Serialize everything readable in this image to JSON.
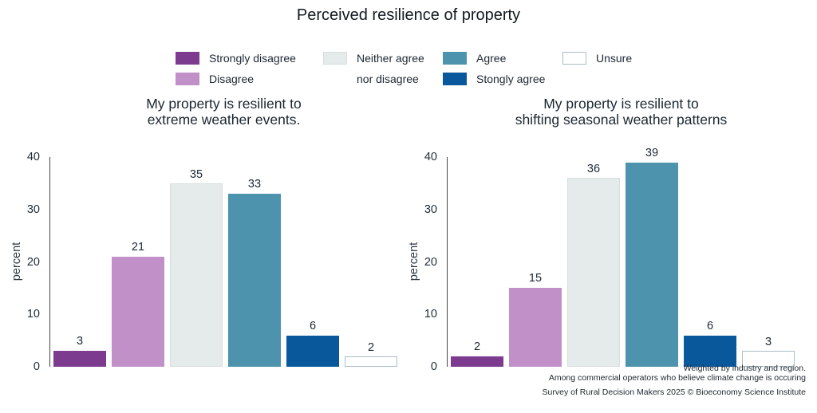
{
  "title": "Perceived resilience of property",
  "palette": {
    "fills": [
      "#7C3B8F",
      "#C190C9",
      "#E5EBEA",
      "#4E93AD",
      "#0A589C",
      "#FFFFFF"
    ],
    "borders": [
      null,
      null,
      "#D4DFDE",
      null,
      null,
      "#A9BDC7"
    ],
    "axis_color": "#454545",
    "text_color": "#1D2733"
  },
  "legend": {
    "columns": [
      {
        "items": [
          {
            "label": "Strongly disagree",
            "color": "#7C3B8F",
            "border": "#7C3B8F"
          },
          {
            "label": "Disagree",
            "color": "#C190C9",
            "border": "#C190C9"
          }
        ]
      },
      {
        "items": [
          {
            "label": "Neither agree",
            "color": "#E5EBEA",
            "border": "#D4DFDE"
          },
          {
            "label": "nor disagree",
            "color": null,
            "border": null
          }
        ]
      },
      {
        "items": [
          {
            "label": "Agree",
            "color": "#4E93AD",
            "border": "#4E93AD"
          },
          {
            "label": "Stongly agree",
            "color": "#0A589C",
            "border": "#0A589C"
          }
        ]
      },
      {
        "items": [
          {
            "label": "Unsure",
            "color": "#FFFFFF",
            "border": "#A9BDC7"
          }
        ]
      }
    ]
  },
  "chart_data": [
    {
      "type": "bar",
      "title": "My property is resilient to extreme weather events.",
      "title_lines": [
        "My property is resilient to",
        "extreme weather events."
      ],
      "ylabel": "percent",
      "ylim": [
        0,
        40
      ],
      "yticks": [
        0,
        10,
        20,
        30,
        40
      ],
      "grid": false,
      "categories": [
        "Strongly disagree",
        "Disagree",
        "Neither agree nor disagree",
        "Agree",
        "Stongly agree",
        "Unsure"
      ],
      "values": [
        3,
        21,
        35,
        33,
        6,
        2
      ]
    },
    {
      "type": "bar",
      "title": "My property is resilient to shifting seasonal weather patterns",
      "title_lines": [
        "My property is resilient to",
        "shifting seasonal weather patterns"
      ],
      "ylabel": "percent",
      "ylim": [
        0,
        40
      ],
      "yticks": [
        0,
        10,
        20,
        30,
        40
      ],
      "grid": false,
      "categories": [
        "Strongly disagree",
        "Disagree",
        "Neither agree nor disagree",
        "Agree",
        "Stongly agree",
        "Unsure"
      ],
      "values": [
        2,
        15,
        36,
        39,
        6,
        3
      ]
    }
  ],
  "footnotes": [
    "Weighted by industry and region.",
    "Among commercial operators who believe climate change is occuring",
    "Survey of Rural Decision Makers 2025 © Bioeconomy Science Institute"
  ]
}
